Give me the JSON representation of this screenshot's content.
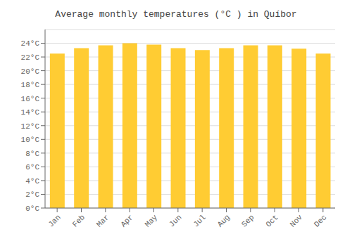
{
  "chart_data": {
    "type": "bar",
    "title": "Average monthly temperatures (°C ) in Quíbor",
    "categories": [
      "Jan",
      "Feb",
      "Mar",
      "Apr",
      "May",
      "Jun",
      "Jul",
      "Aug",
      "Sep",
      "Oct",
      "Nov",
      "Dec"
    ],
    "values": [
      22.5,
      23.3,
      23.7,
      24.0,
      23.8,
      23.3,
      23.0,
      23.3,
      23.7,
      23.7,
      23.2,
      22.5
    ],
    "color": "#FFCC33",
    "ylim": [
      0,
      26
    ],
    "yticks": [
      {
        "value": 0,
        "label": "0°C"
      },
      {
        "value": 2,
        "label": "2°C"
      },
      {
        "value": 4,
        "label": "4°C"
      },
      {
        "value": 6,
        "label": "6°C"
      },
      {
        "value": 8,
        "label": "8°C"
      },
      {
        "value": 10,
        "label": "10°C"
      },
      {
        "value": 12,
        "label": "12°C"
      },
      {
        "value": 14,
        "label": "14°C"
      },
      {
        "value": 16,
        "label": "16°C"
      },
      {
        "value": 18,
        "label": "18°C"
      },
      {
        "value": 20,
        "label": "20°C"
      },
      {
        "value": 22,
        "label": "22°C"
      },
      {
        "value": 24,
        "label": "24°C"
      }
    ],
    "grid": true
  }
}
